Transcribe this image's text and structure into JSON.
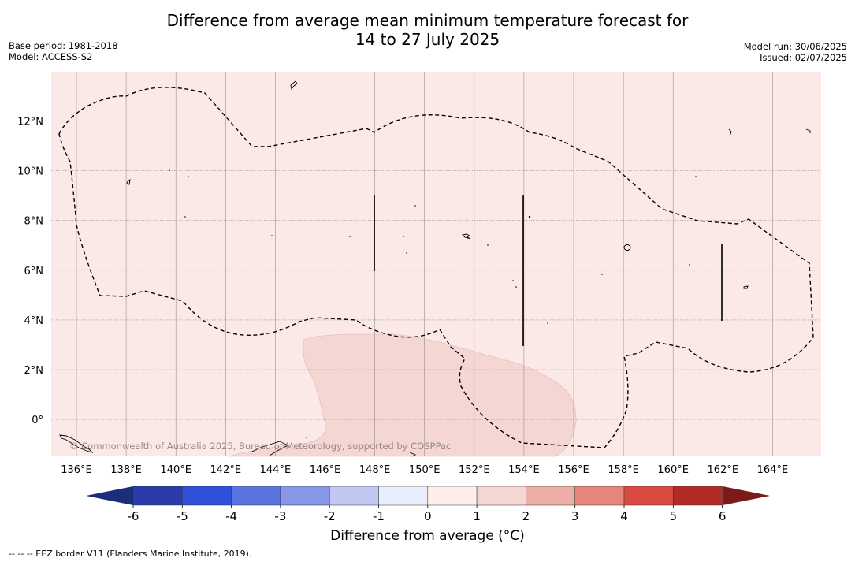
{
  "title": {
    "line1": "Difference from average mean minimum temperature forecast for",
    "line2": "14 to 27 July 2025"
  },
  "meta_left": {
    "base_period": "Base period: 1981-2018",
    "model": "Model: ACCESS-S2"
  },
  "meta_right": {
    "model_run": "Model run: 30/06/2025",
    "issued": "Issued: 02/07/2025"
  },
  "map": {
    "background_color": "#fbe9e8",
    "anomaly_patch_color": "#f4d6d3",
    "x_ticks": [
      "136°E",
      "138°E",
      "140°E",
      "142°E",
      "144°E",
      "146°E",
      "148°E",
      "150°E",
      "152°E",
      "154°E",
      "156°E",
      "158°E",
      "160°E",
      "162°E",
      "164°E"
    ],
    "y_ticks": [
      "12°N",
      "10°N",
      "8°N",
      "6°N",
      "4°N",
      "2°N",
      "0°"
    ],
    "watermark": "© Commonwealth of Australia 2025, Bureau of Meteorology, supported by COSPPac"
  },
  "colorbar": {
    "ticks": [
      "-6",
      "-5",
      "-4",
      "-3",
      "-2",
      "-1",
      "0",
      "1",
      "2",
      "3",
      "4",
      "5",
      "6"
    ],
    "colors": [
      "#2a3cab",
      "#3050dd",
      "#5a75e2",
      "#8797e8",
      "#c0c8f2",
      "#e9ecfb",
      "#fdeeed",
      "#f6d6d3",
      "#edaea8",
      "#e5857d",
      "#da4a41",
      "#b22c27"
    ],
    "under_color": "#1b2e79",
    "over_color": "#7c1a17",
    "label": "Difference from average (°C)"
  },
  "footnote": "-- -- -- EEZ border V11 (Flanders Marine Institute, 2019)."
}
